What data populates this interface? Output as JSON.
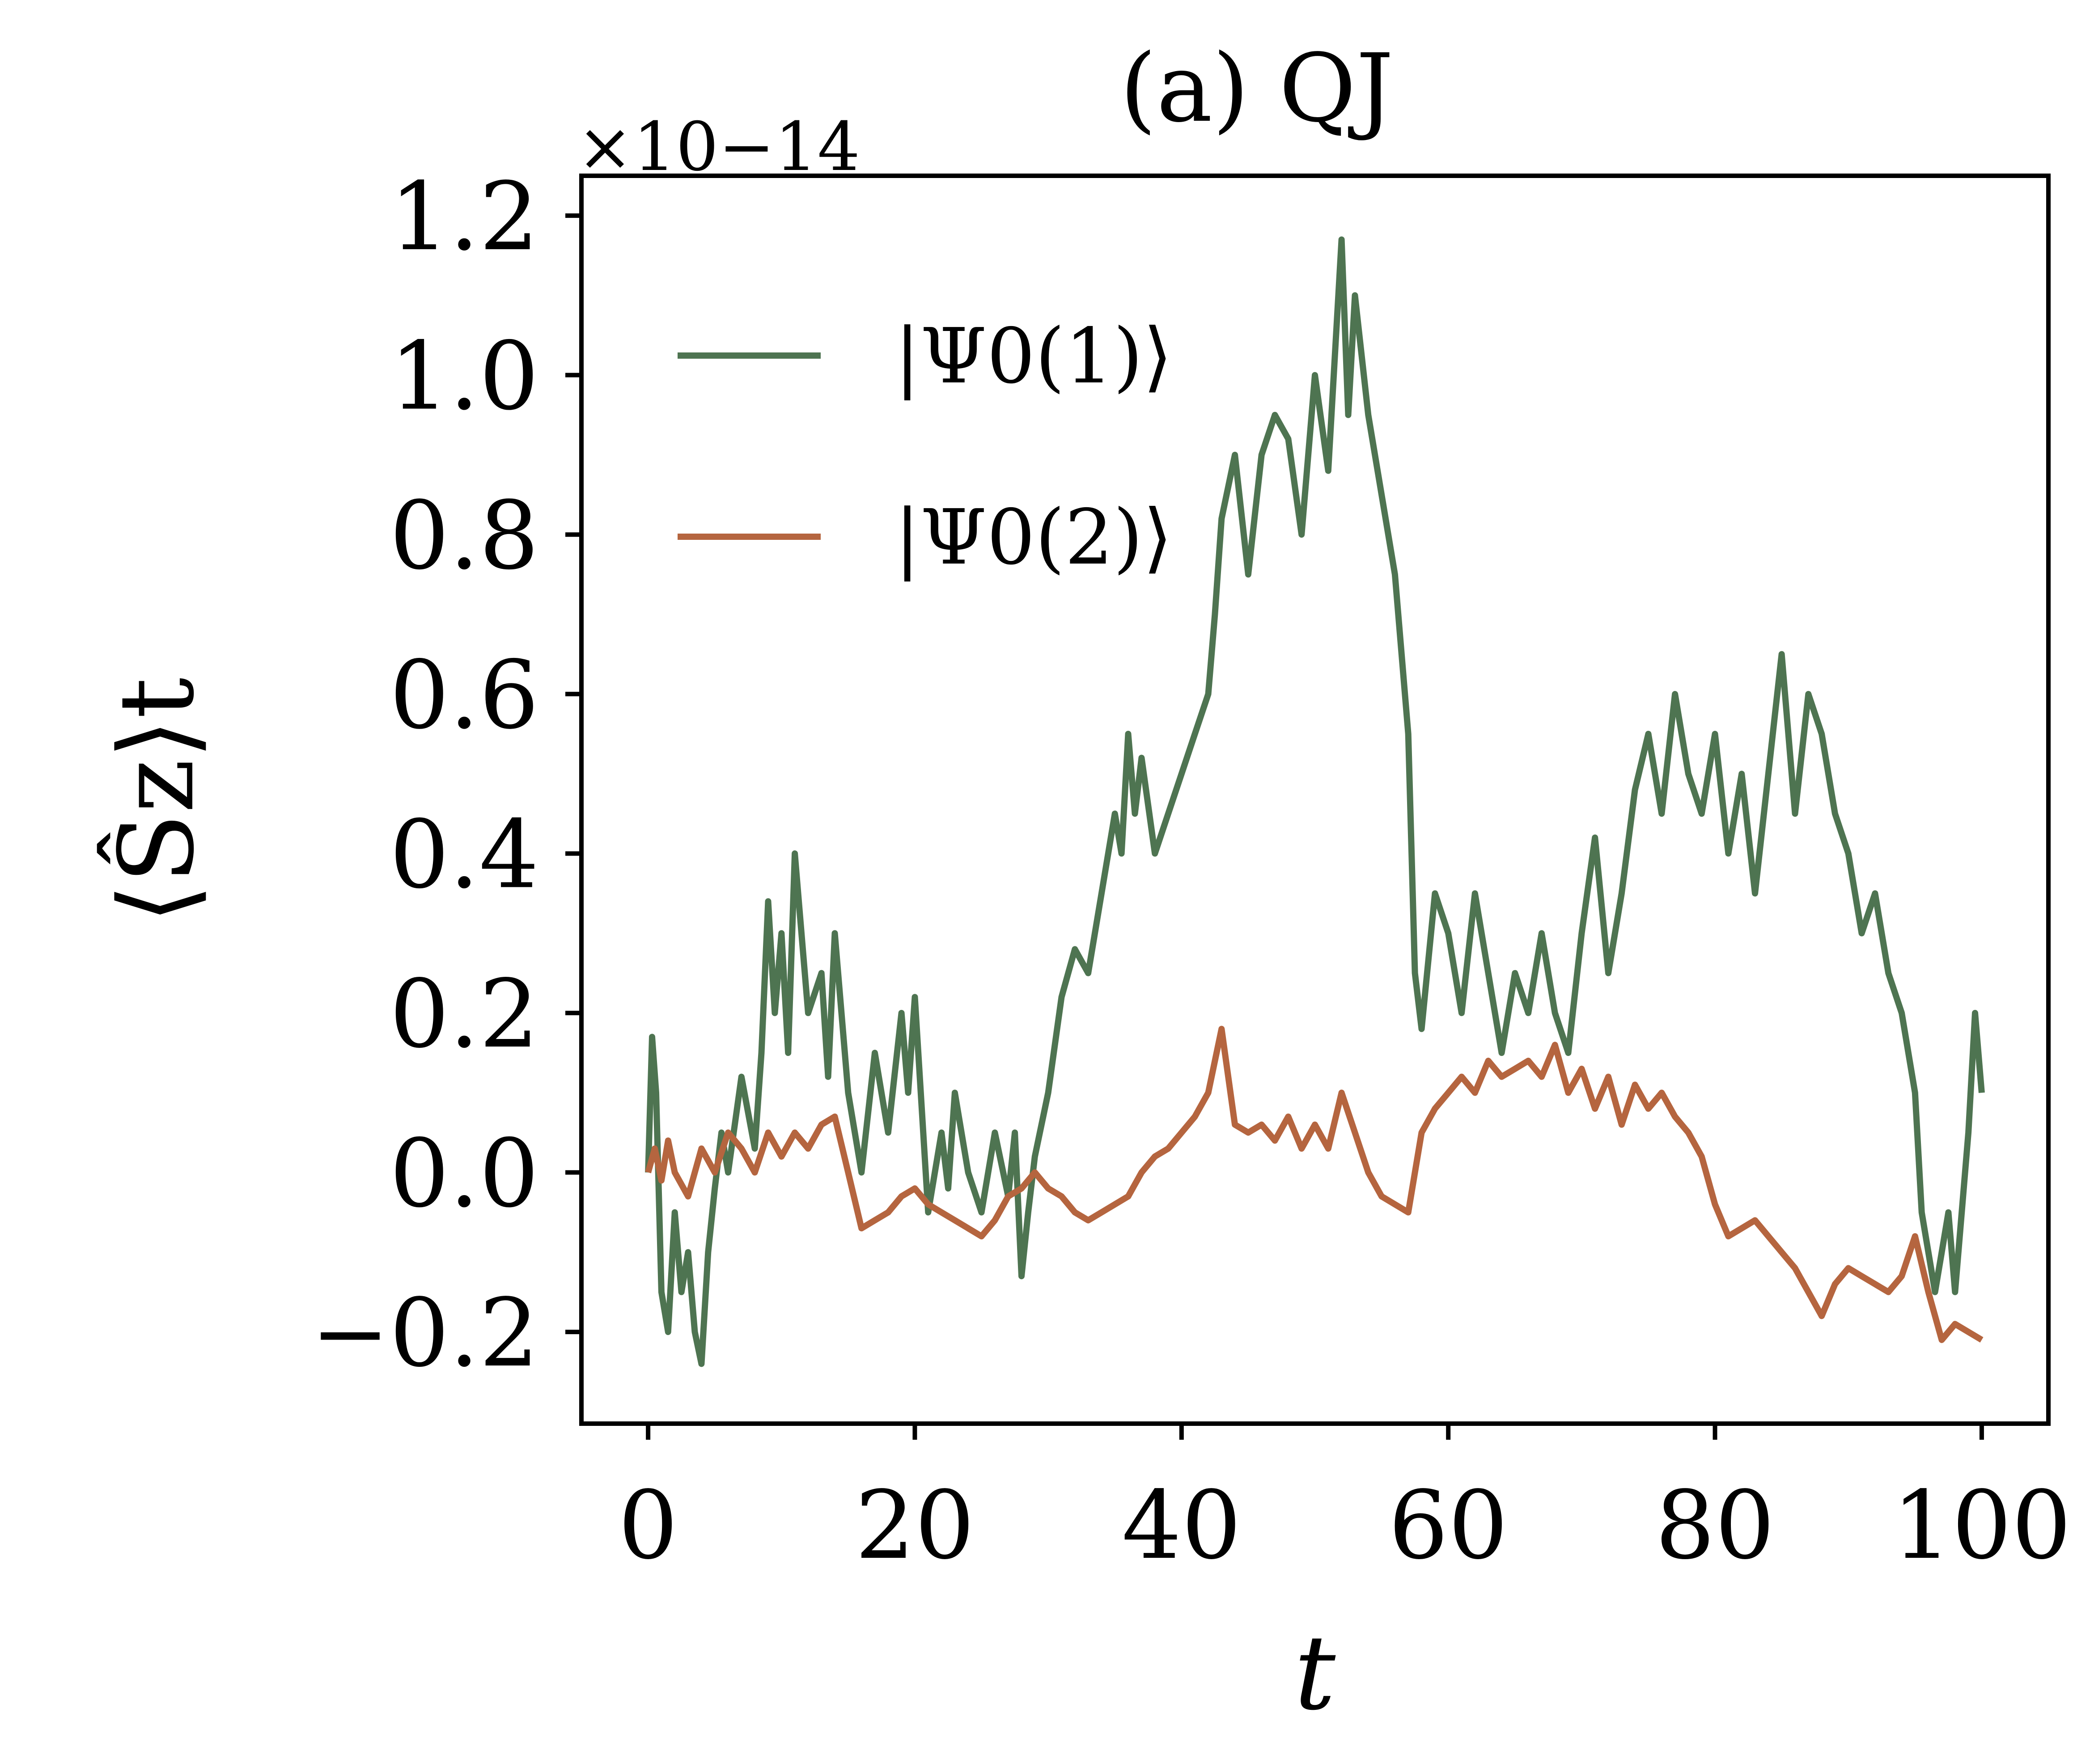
{
  "chart_data": {
    "type": "line",
    "title": "(a) QJ",
    "xlabel": "t",
    "ylabel": "⟨Ŝz⟩t",
    "y_multiplier": "×10−14",
    "xlim": [
      -5,
      105
    ],
    "ylim": [
      -0.315,
      1.25
    ],
    "xticks": [
      0,
      20,
      40,
      60,
      80,
      100
    ],
    "xtick_labels": [
      "0",
      "20",
      "40",
      "60",
      "80",
      "100"
    ],
    "yticks": [
      -0.2,
      0.0,
      0.2,
      0.4,
      0.6,
      0.8,
      1.0,
      1.2
    ],
    "ytick_labels": [
      "−0.2",
      "0.0",
      "0.2",
      "0.4",
      "0.6",
      "0.8",
      "1.0",
      "1.2"
    ],
    "grid": false,
    "legend_position": "top-left",
    "series": [
      {
        "name": "|Ψ0(1)⟩",
        "color": "#4e7451",
        "x": [
          0,
          0.3,
          0.6,
          1,
          1.5,
          2,
          2.5,
          3,
          3.5,
          4,
          4.5,
          5,
          5.5,
          6,
          7,
          8,
          8.5,
          9,
          9.5,
          10,
          10.5,
          11,
          12,
          13,
          13.5,
          14,
          15,
          16,
          17,
          18,
          19,
          19.5,
          20,
          21,
          22,
          22.5,
          23,
          24,
          25,
          26,
          27,
          27.5,
          28,
          28.5,
          29,
          30,
          31,
          32,
          33,
          34,
          35,
          35.5,
          36,
          36.5,
          37,
          38,
          39,
          40,
          41,
          42,
          42.5,
          43,
          44,
          45,
          46,
          47,
          48,
          49,
          50,
          51,
          52,
          52.5,
          53,
          54,
          55,
          56,
          57,
          57.5,
          58,
          59,
          60,
          61,
          62,
          63,
          64,
          65,
          66,
          67,
          68,
          69,
          70,
          71,
          72,
          73,
          74,
          75,
          76,
          77,
          78,
          79,
          80,
          81,
          82,
          83,
          84,
          85,
          86,
          87,
          88,
          89,
          90,
          91,
          92,
          93,
          94,
          95,
          95.5,
          96,
          96.5,
          97,
          97.5,
          98,
          99,
          99.5,
          100
        ],
        "y": [
          0.0,
          0.17,
          0.1,
          -0.15,
          -0.2,
          -0.05,
          -0.15,
          -0.1,
          -0.2,
          -0.24,
          -0.1,
          -0.02,
          0.05,
          0.0,
          0.12,
          0.03,
          0.15,
          0.34,
          0.2,
          0.3,
          0.15,
          0.4,
          0.2,
          0.25,
          0.12,
          0.3,
          0.1,
          0.0,
          0.15,
          0.05,
          0.2,
          0.1,
          0.22,
          -0.05,
          0.05,
          -0.02,
          0.1,
          0.0,
          -0.05,
          0.05,
          -0.03,
          0.05,
          -0.13,
          -0.05,
          0.02,
          0.1,
          0.22,
          0.28,
          0.25,
          0.35,
          0.45,
          0.4,
          0.55,
          0.45,
          0.52,
          0.4,
          0.45,
          0.5,
          0.55,
          0.6,
          0.7,
          0.82,
          0.9,
          0.75,
          0.9,
          0.95,
          0.92,
          0.8,
          1.0,
          0.88,
          1.17,
          0.95,
          1.1,
          0.95,
          0.85,
          0.75,
          0.55,
          0.25,
          0.18,
          0.35,
          0.3,
          0.2,
          0.35,
          0.25,
          0.15,
          0.25,
          0.2,
          0.3,
          0.2,
          0.15,
          0.3,
          0.42,
          0.25,
          0.35,
          0.48,
          0.55,
          0.45,
          0.6,
          0.5,
          0.45,
          0.55,
          0.4,
          0.5,
          0.35,
          0.5,
          0.65,
          0.45,
          0.6,
          0.55,
          0.45,
          0.4,
          0.3,
          0.35,
          0.25,
          0.2,
          0.1,
          -0.05,
          -0.1,
          -0.15,
          -0.1,
          -0.05,
          -0.15,
          0.05,
          0.2,
          0.1
        ]
      },
      {
        "name": "|Ψ0(2)⟩",
        "color": "#b5653f",
        "x": [
          0,
          0.5,
          1,
          1.5,
          2,
          3,
          4,
          5,
          6,
          7,
          8,
          9,
          10,
          11,
          12,
          13,
          14,
          15,
          16,
          17,
          18,
          19,
          20,
          21,
          22,
          23,
          24,
          25,
          26,
          27,
          28,
          29,
          30,
          31,
          32,
          33,
          34,
          35,
          36,
          37,
          38,
          39,
          40,
          41,
          42,
          43,
          44,
          45,
          46,
          47,
          48,
          49,
          50,
          51,
          52,
          53,
          54,
          55,
          56,
          57,
          58,
          59,
          60,
          61,
          62,
          63,
          64,
          65,
          66,
          67,
          68,
          69,
          70,
          71,
          72,
          73,
          74,
          75,
          76,
          77,
          78,
          79,
          80,
          81,
          82,
          83,
          84,
          85,
          86,
          87,
          88,
          89,
          90,
          91,
          92,
          93,
          94,
          95,
          96,
          97,
          98,
          99,
          100
        ],
        "y": [
          0.0,
          0.03,
          -0.01,
          0.04,
          0.0,
          -0.03,
          0.03,
          0.0,
          0.05,
          0.03,
          0.0,
          0.05,
          0.02,
          0.05,
          0.03,
          0.06,
          0.07,
          0.0,
          -0.07,
          -0.06,
          -0.05,
          -0.03,
          -0.02,
          -0.04,
          -0.05,
          -0.06,
          -0.07,
          -0.08,
          -0.06,
          -0.03,
          -0.02,
          0.0,
          -0.02,
          -0.03,
          -0.05,
          -0.06,
          -0.05,
          -0.04,
          -0.03,
          0.0,
          0.02,
          0.03,
          0.05,
          0.07,
          0.1,
          0.18,
          0.06,
          0.05,
          0.06,
          0.04,
          0.07,
          0.03,
          0.06,
          0.03,
          0.1,
          0.05,
          0.0,
          -0.03,
          -0.04,
          -0.05,
          0.05,
          0.08,
          0.1,
          0.12,
          0.1,
          0.14,
          0.12,
          0.13,
          0.14,
          0.12,
          0.16,
          0.1,
          0.13,
          0.08,
          0.12,
          0.06,
          0.11,
          0.08,
          0.1,
          0.07,
          0.05,
          0.02,
          -0.04,
          -0.08,
          -0.07,
          -0.06,
          -0.08,
          -0.1,
          -0.12,
          -0.15,
          -0.18,
          -0.14,
          -0.12,
          -0.13,
          -0.14,
          -0.15,
          -0.13,
          -0.08,
          -0.15,
          -0.21,
          -0.19,
          -0.2,
          -0.21
        ]
      }
    ]
  }
}
